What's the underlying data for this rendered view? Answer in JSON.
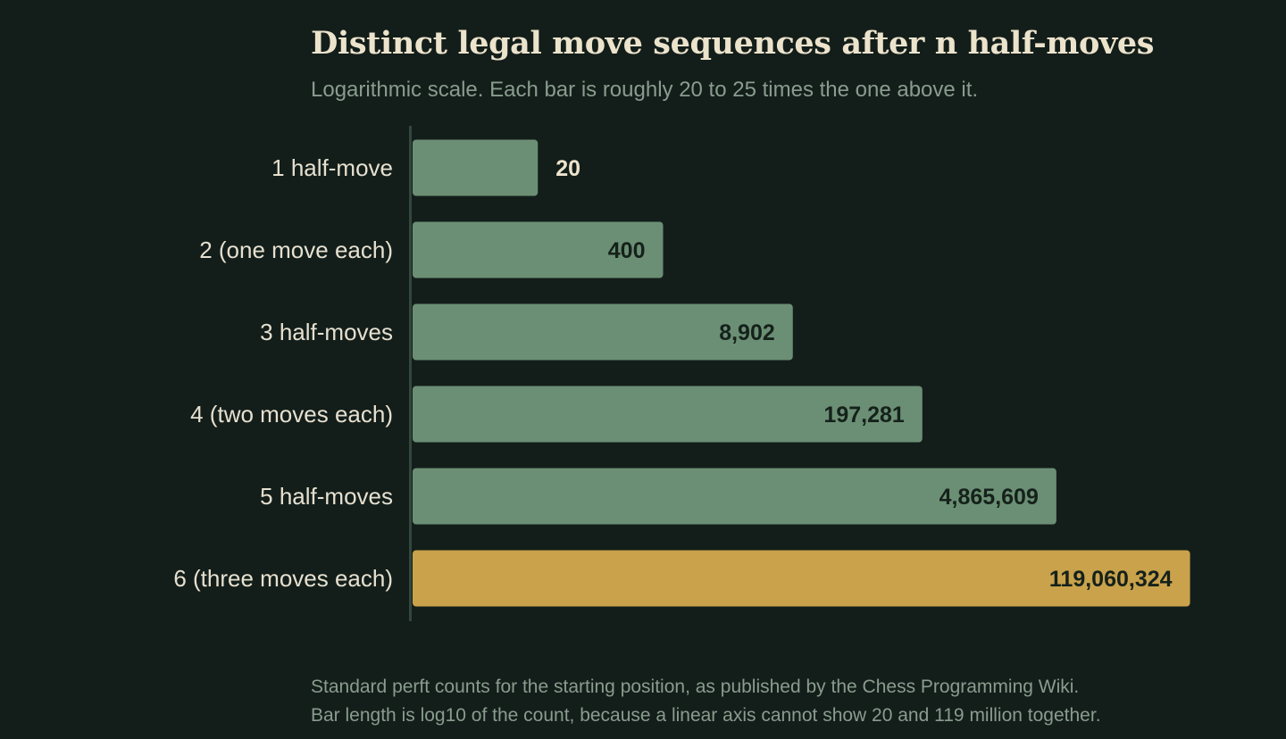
{
  "chart_data": {
    "type": "bar",
    "orientation": "horizontal",
    "title": "Distinct legal move sequences after n half-moves",
    "subtitle": "Logarithmic scale. Each bar is roughly 20 to 25 times the one above it.",
    "scale": "log10",
    "categories": [
      "1 half-move",
      "2 (one move each)",
      "3 half-moves",
      "4 (two moves each)",
      "5 half-moves",
      "6 (three moves each)"
    ],
    "values": [
      20,
      400,
      8902,
      197281,
      4865609,
      119060324
    ],
    "value_labels": [
      "20",
      "400",
      "8,902",
      "197,281",
      "4,865,609",
      "119,060,324"
    ],
    "highlight_index": 5,
    "xlim_log10": [
      0,
      8.55
    ],
    "grid": false,
    "legend": "none"
  },
  "footnote": {
    "line1": "Standard perft counts for the starting position, as published by the Chess Programming Wiki.",
    "line2": "Bar length is log10 of the count, because a linear axis cannot show 20 and 119 million together."
  },
  "colors": {
    "background": "#131e1a",
    "bar": "#6b8f74",
    "bar_highlight": "#c9a24b",
    "axis": "#34463d",
    "label_inside": "#15211b",
    "label_outside": "#ece3cc"
  }
}
